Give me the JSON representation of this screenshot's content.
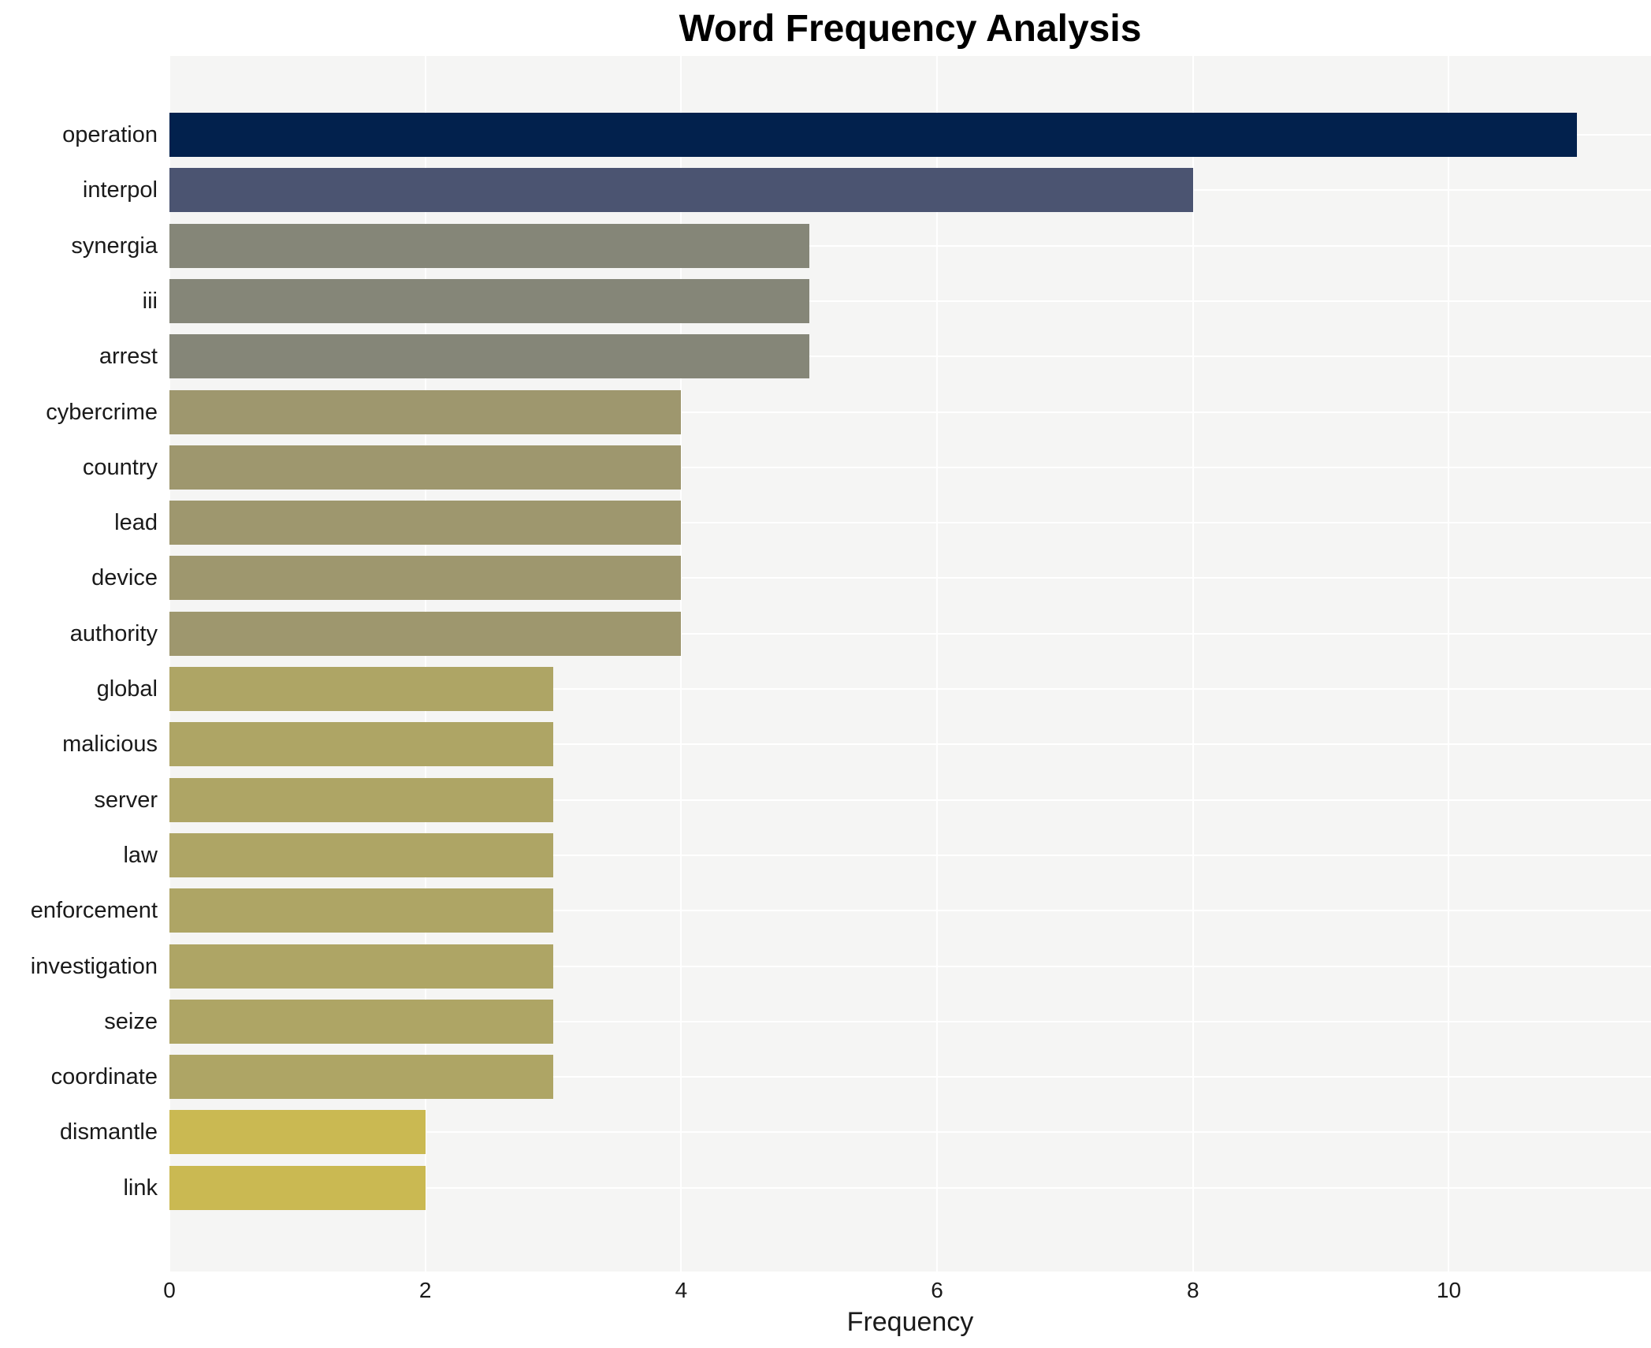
{
  "chart_data": {
    "type": "bar",
    "orientation": "horizontal",
    "title": "Word Frequency Analysis",
    "xlabel": "Frequency",
    "ylabel": "",
    "categories": [
      "operation",
      "interpol",
      "synergia",
      "iii",
      "arrest",
      "cybercrime",
      "country",
      "lead",
      "device",
      "authority",
      "global",
      "malicious",
      "server",
      "law",
      "enforcement",
      "investigation",
      "seize",
      "coordinate",
      "dismantle",
      "link"
    ],
    "values": [
      11,
      8,
      5,
      5,
      5,
      4,
      4,
      4,
      4,
      4,
      3,
      3,
      3,
      3,
      3,
      3,
      3,
      3,
      2,
      2
    ],
    "xlim": [
      0,
      11.58
    ],
    "xticks": [
      0,
      2,
      4,
      6,
      8,
      10
    ],
    "grid": true,
    "legend": "none",
    "colors": {
      "plot_background": "#f5f5f4",
      "figure_background": "#ffffff",
      "gridline": "#ffffff",
      "text": "#1a1a1a",
      "title_text": "#000000",
      "value_colors": {
        "11": "#02214d",
        "8": "#4b5471",
        "5": "#858678",
        "4": "#9e976e",
        "3": "#aea565",
        "2": "#cab952"
      }
    }
  }
}
